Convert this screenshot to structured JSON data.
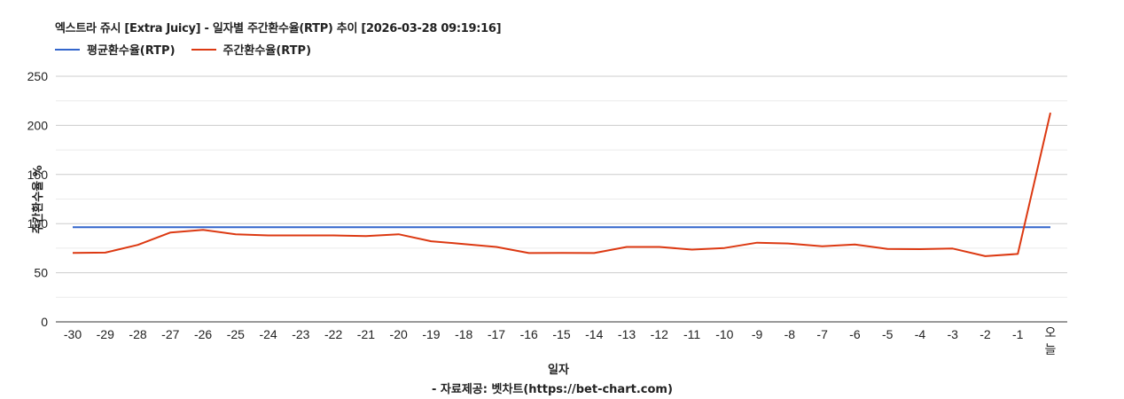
{
  "header": {
    "title": "엑스트라 쥬시 [Extra Juicy] - 일자별 주간환수율(RTP) 추이 [2026-03-28 09:19:16]"
  },
  "legend": [
    {
      "label": "평균환수율(RTP)",
      "color": "#3366cc"
    },
    {
      "label": "주간환수율(RTP)",
      "color": "#dc3912"
    }
  ],
  "axes": {
    "ylabel": "주간환수율 %",
    "xlabel": "일자",
    "credit": "- 자료제공: 벳차트(https://bet-chart.com)"
  },
  "chart_data": {
    "type": "line",
    "title": "엑스트라 쥬시 [Extra Juicy] - 일자별 주간환수율(RTP) 추이 [2026-03-28 09:19:16]",
    "xlabel": "일자",
    "ylabel": "주간환수율 %",
    "ylim": [
      0,
      250
    ],
    "yticks": [
      0,
      50,
      100,
      150,
      200,
      250
    ],
    "grid": true,
    "legend_position": "top",
    "categories": [
      "-30",
      "-29",
      "-28",
      "-27",
      "-26",
      "-25",
      "-24",
      "-23",
      "-22",
      "-21",
      "-20",
      "-19",
      "-18",
      "-17",
      "-16",
      "-15",
      "-14",
      "-13",
      "-12",
      "-11",
      "-10",
      "-9",
      "-8",
      "-7",
      "-6",
      "-5",
      "-4",
      "-3",
      "-2",
      "-1",
      "오늘"
    ],
    "series": [
      {
        "name": "평균환수율(RTP)",
        "color": "#3366cc",
        "values": [
          96.4,
          96.4,
          96.4,
          96.4,
          96.4,
          96.4,
          96.4,
          96.4,
          96.4,
          96.4,
          96.4,
          96.4,
          96.4,
          96.4,
          96.4,
          96.4,
          96.4,
          96.4,
          96.4,
          96.4,
          96.4,
          96.4,
          96.4,
          96.4,
          96.4,
          96.4,
          96.4,
          96.4,
          96.4,
          96.4,
          96.4
        ]
      },
      {
        "name": "주간환수율(RTP)",
        "color": "#dc3912",
        "values": [
          70.2,
          70.5,
          78.3,
          91.0,
          93.7,
          89.2,
          88.0,
          88.0,
          88.0,
          87.4,
          89.2,
          82.0,
          79.2,
          76.3,
          70.0,
          70.1,
          70.0,
          76.3,
          76.3,
          73.6,
          75.2,
          80.6,
          79.7,
          77.0,
          78.8,
          74.3,
          74.0,
          74.6,
          66.9,
          69.1,
          212.9
        ]
      }
    ]
  }
}
